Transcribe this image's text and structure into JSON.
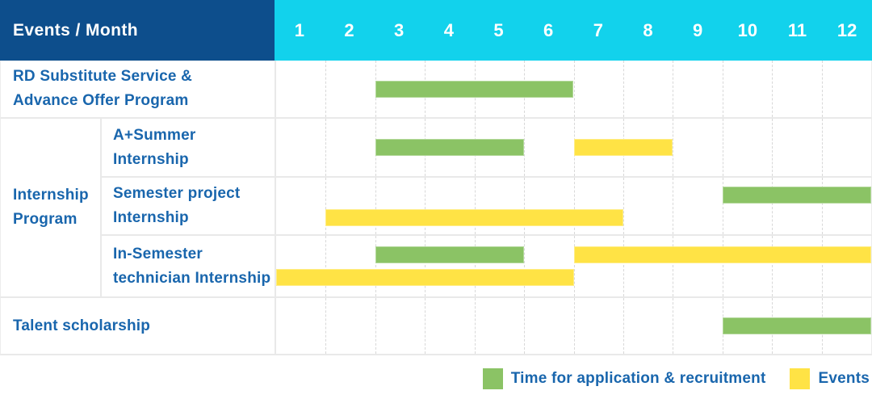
{
  "table": {
    "corner_label": "Events / Month",
    "months": [
      "1",
      "2",
      "3",
      "4",
      "5",
      "6",
      "7",
      "8",
      "9",
      "10",
      "11",
      "12"
    ],
    "group": {
      "label_lines": [
        "Internship",
        "Program"
      ]
    },
    "rows": [
      {
        "name": "rd-substitute-service",
        "label_lines": [
          "RD Substitute Service &",
          "Advance Offer Program"
        ],
        "lines": 1,
        "bars": [
          {
            "type": "recruitment",
            "start_month": 3,
            "end_month": 6,
            "line": 0
          }
        ]
      },
      {
        "name": "a-plus-summer-internship",
        "label_lines": [
          "A+Summer",
          "Internship"
        ],
        "lines": 1,
        "bars": [
          {
            "type": "recruitment",
            "start_month": 3,
            "end_month": 5,
            "line": 0
          },
          {
            "type": "events",
            "start_month": 7,
            "end_month": 8,
            "line": 0
          }
        ]
      },
      {
        "name": "semester-project-internship",
        "label_lines": [
          "Semester project",
          "Internship"
        ],
        "lines": 2,
        "bars": [
          {
            "type": "recruitment",
            "start_month": 10,
            "end_month": 12,
            "line": 0
          },
          {
            "type": "events",
            "start_month": 2,
            "end_month": 7,
            "line": 1
          }
        ]
      },
      {
        "name": "in-semester-technician-internship",
        "label_lines": [
          "In-Semester",
          "technician Internship"
        ],
        "lines": 2,
        "bars": [
          {
            "type": "recruitment",
            "start_month": 3,
            "end_month": 5,
            "line": 0
          },
          {
            "type": "events",
            "start_month": 7,
            "end_month": 12,
            "line": 0
          },
          {
            "type": "events",
            "start_month": 1,
            "end_month": 6,
            "line": 1
          }
        ]
      },
      {
        "name": "talent-scholarship",
        "label_lines": [
          "Talent scholarship"
        ],
        "lines": 1,
        "bars": [
          {
            "type": "recruitment",
            "start_month": 10,
            "end_month": 12,
            "line": 0
          }
        ]
      }
    ]
  },
  "legend": {
    "items": [
      {
        "type": "recruitment",
        "label": "Time for application & recruitment"
      },
      {
        "type": "events",
        "label": "Events"
      }
    ]
  },
  "colors": {
    "recruitment_green": "#8bc365",
    "events_yellow": "#ffe345",
    "header_navy": "#0d4e8c",
    "months_cyan": "#12d2ec",
    "label_blue": "#1966ad",
    "grid_gray": "#e9e9e9"
  },
  "chart_data": {
    "type": "bar",
    "subtype": "gantt",
    "title": "Events / Month",
    "xlabel": "Month",
    "x_ticks": [
      1,
      2,
      3,
      4,
      5,
      6,
      7,
      8,
      9,
      10,
      11,
      12
    ],
    "xlim": [
      1,
      12
    ],
    "grid": true,
    "legend_position": "bottom-right",
    "legend": [
      "Time for application & recruitment",
      "Events"
    ],
    "tasks": [
      {
        "row": "RD Substitute Service & Advance Offer Program",
        "group": null,
        "segments": [
          {
            "kind": "Time for application & recruitment",
            "months": [
              3,
              6
            ]
          }
        ]
      },
      {
        "row": "A+Summer Internship",
        "group": "Internship Program",
        "segments": [
          {
            "kind": "Time for application & recruitment",
            "months": [
              3,
              5
            ]
          },
          {
            "kind": "Events",
            "months": [
              7,
              8
            ]
          }
        ]
      },
      {
        "row": "Semester project Internship",
        "group": "Internship Program",
        "segments": [
          {
            "kind": "Time for application & recruitment",
            "months": [
              10,
              12
            ]
          },
          {
            "kind": "Events",
            "months": [
              2,
              7
            ]
          }
        ]
      },
      {
        "row": "In-Semester technician Internship",
        "group": "Internship Program",
        "segments": [
          {
            "kind": "Time for application & recruitment",
            "months": [
              3,
              5
            ]
          },
          {
            "kind": "Events",
            "months": [
              7,
              12
            ]
          },
          {
            "kind": "Events",
            "months": [
              1,
              6
            ]
          }
        ]
      },
      {
        "row": "Talent scholarship",
        "group": null,
        "segments": [
          {
            "kind": "Time for application & recruitment",
            "months": [
              10,
              12
            ]
          }
        ]
      }
    ]
  }
}
